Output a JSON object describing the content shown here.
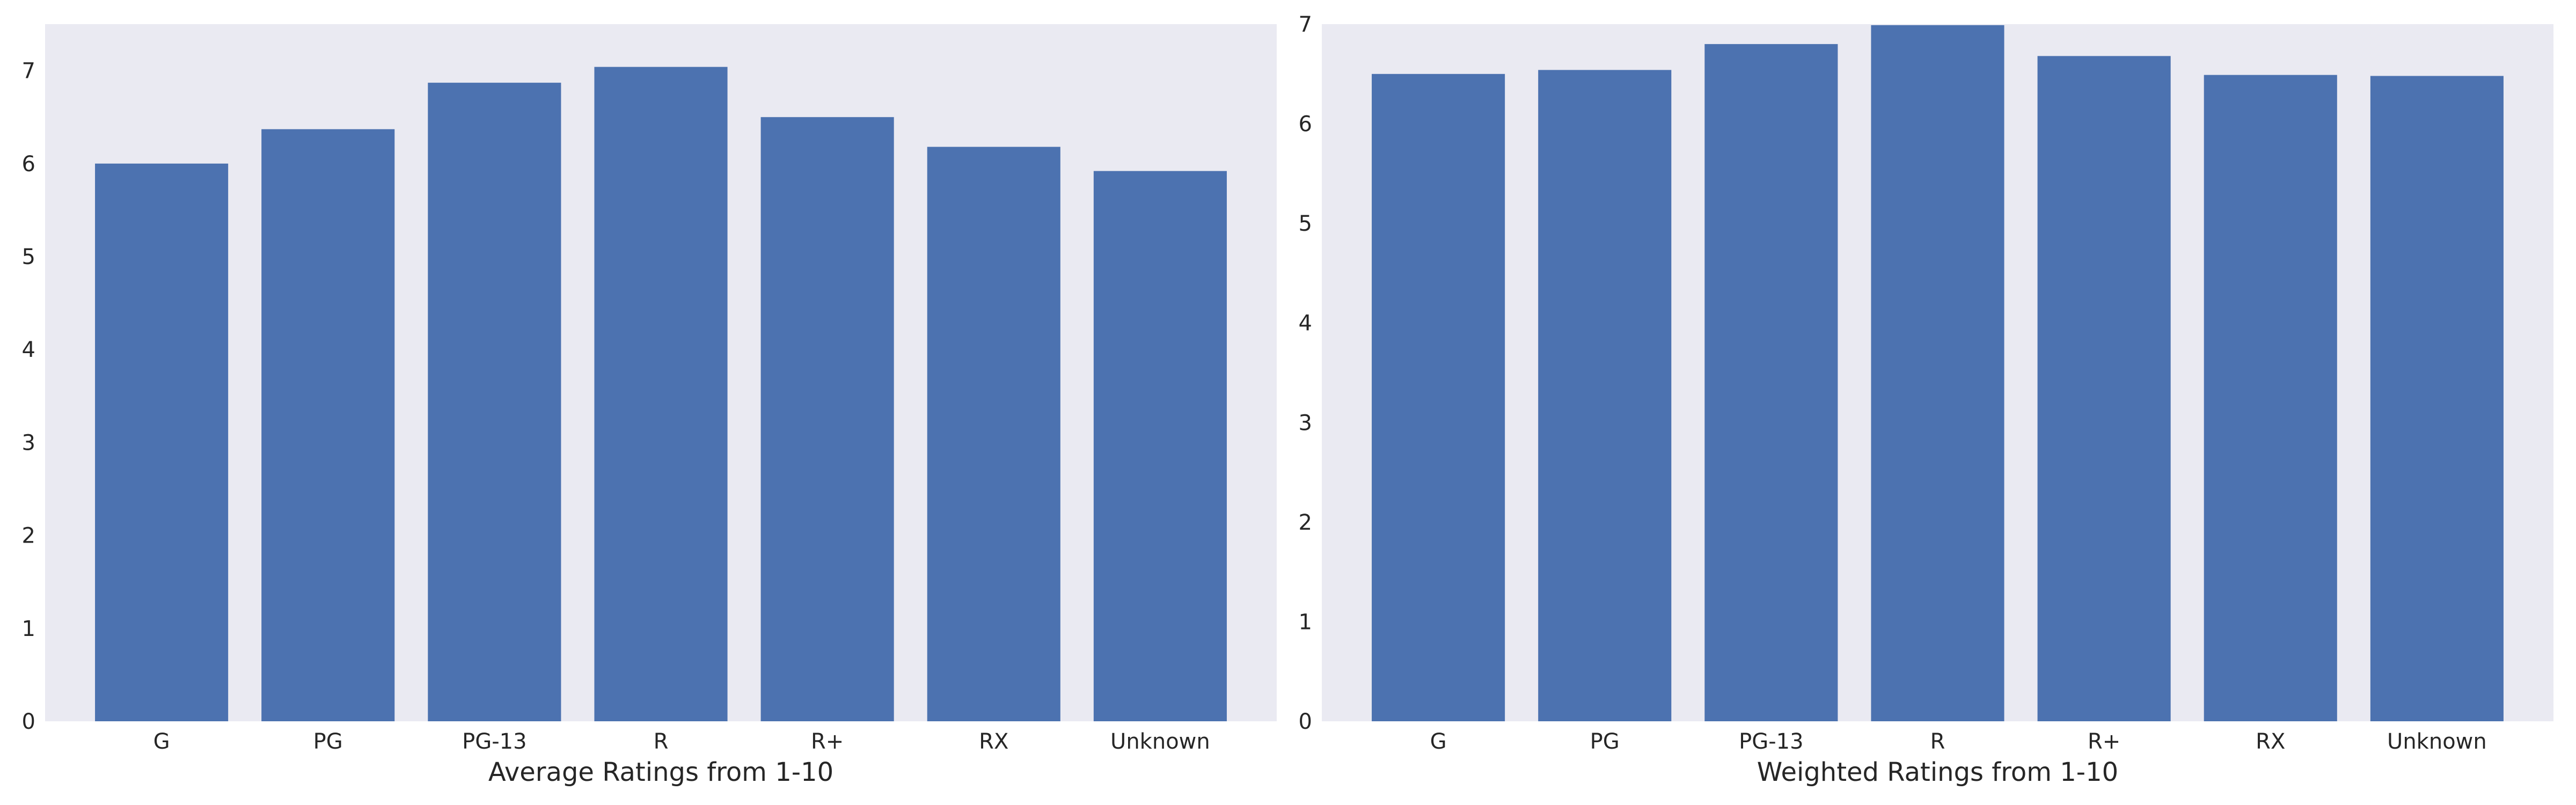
{
  "chart_data": [
    {
      "type": "bar",
      "title": "",
      "xlabel": "Average Ratings from 1-10",
      "ylabel": "",
      "categories": [
        "G",
        "PG",
        "PG-13",
        "R",
        "R+",
        "RX",
        "Unknown"
      ],
      "values": [
        6.0,
        6.37,
        6.87,
        7.04,
        6.5,
        6.18,
        5.92
      ],
      "ylim": [
        0,
        7.5
      ],
      "yticks": [
        "0",
        "1",
        "2",
        "3",
        "4",
        "5",
        "6",
        "7"
      ],
      "grid": false,
      "legend": "none",
      "bar_color": "#4c72b0",
      "plot_background": "#eaeaf2"
    },
    {
      "type": "bar",
      "title": "",
      "xlabel": "Weighted Ratings from 1-10",
      "ylabel": "",
      "categories": [
        "G",
        "PG",
        "PG-13",
        "R",
        "R+",
        "RX",
        "Unknown"
      ],
      "values": [
        6.5,
        6.54,
        6.8,
        6.99,
        6.68,
        6.49,
        6.48
      ],
      "ylim": [
        0,
        7.0
      ],
      "yticks": [
        "0",
        "1",
        "2",
        "3",
        "4",
        "5",
        "6",
        "7"
      ],
      "grid": false,
      "legend": "none",
      "bar_color": "#4c72b0",
      "plot_background": "#eaeaf2"
    }
  ]
}
